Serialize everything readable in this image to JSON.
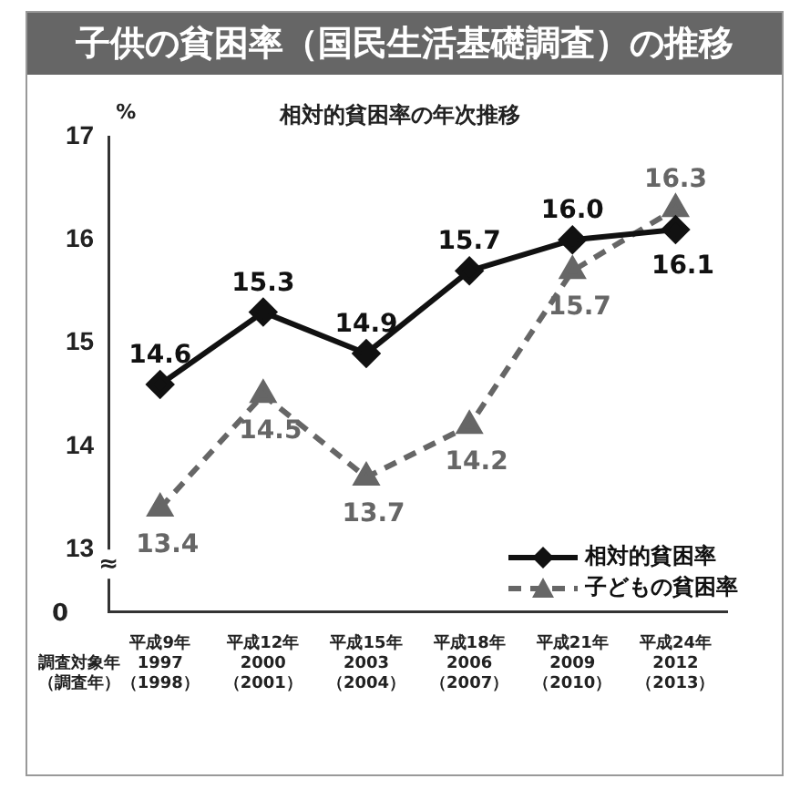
{
  "chart_data": {
    "type": "line",
    "title": "子供の貧困率（国民生活基礎調査）の推移",
    "subtitle": "相対的貧困率の年次推移",
    "ylabel": "%",
    "xlabel": "調査対象年（調査年）",
    "categories": [
      "平成9年\n1997\n（1998）",
      "平成12年\n2000\n（2001）",
      "平成15年\n2003\n（2004）",
      "平成18年\n2006\n（2007）",
      "平成21年\n2009\n（2010）",
      "平成24年\n2012\n（2013）"
    ],
    "series": [
      {
        "name": "相対的貧困率",
        "color": "#111111",
        "marker": "diamond",
        "line_style": "solid",
        "values": [
          14.6,
          15.3,
          14.9,
          15.7,
          16.0,
          16.1
        ],
        "value_labels": [
          "14.6",
          "15.3",
          "14.9",
          "15.7",
          "16.0",
          "16.1"
        ]
      },
      {
        "name": "子どもの貧困率",
        "color": "#666666",
        "marker": "triangle",
        "line_style": "dashed",
        "values": [
          13.4,
          14.5,
          13.7,
          14.2,
          15.7,
          16.3
        ],
        "value_labels": [
          "13.4",
          "14.5",
          "13.7",
          "14.2",
          "15.7",
          "16.3"
        ]
      }
    ],
    "ylim": [
      12.4,
      17
    ],
    "yticks": [
      13,
      14,
      15,
      16,
      17
    ],
    "annotations": [
      "0",
      "≈"
    ],
    "legend": "bottom right",
    "grid": false
  }
}
